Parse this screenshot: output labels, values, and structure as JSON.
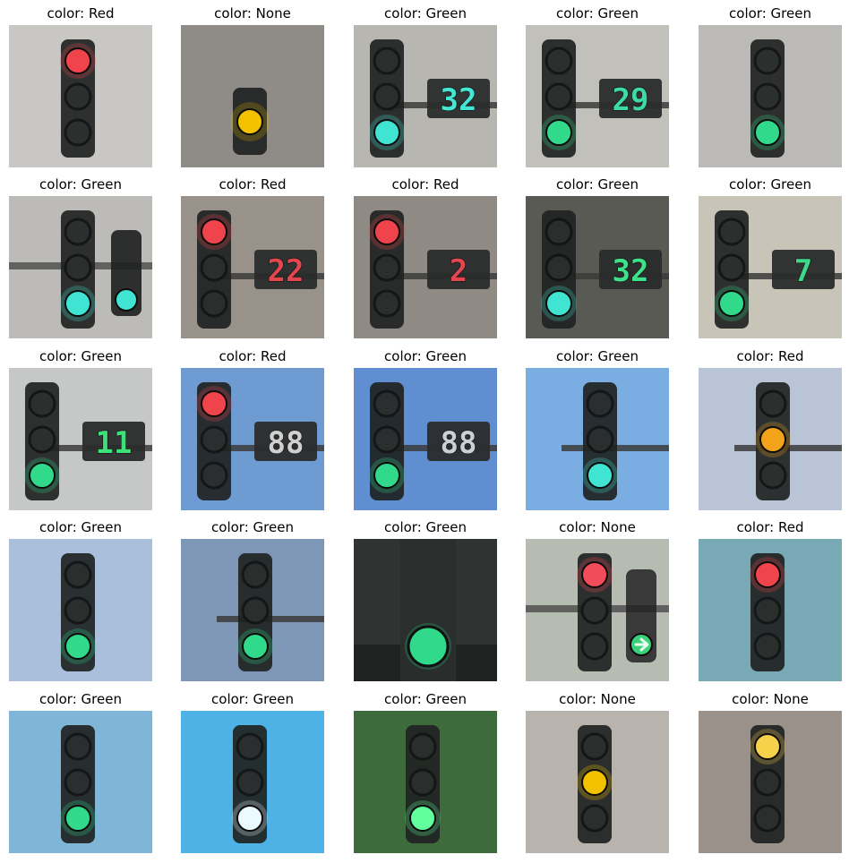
{
  "grid": [
    {
      "label": "color: Red",
      "signal": "red",
      "sky": "#c9c7c4",
      "numeric": "",
      "num_color": "",
      "scene": "single"
    },
    {
      "label": "color: None",
      "signal": "yellow",
      "sky": "#9a9690",
      "numeric": "",
      "num_color": "",
      "scene": "dark-single"
    },
    {
      "label": "color: Green",
      "signal": "cyan",
      "sky": "#b8b6b1",
      "numeric": "32",
      "num_color": "#44e6d4",
      "scene": "with-counter"
    },
    {
      "label": "color: Green",
      "signal": "green",
      "sky": "#c2c0bb",
      "numeric": "29",
      "num_color": "#3fd9a8",
      "scene": "with-counter"
    },
    {
      "label": "color: Green",
      "signal": "green",
      "sky": "#bcbab6",
      "numeric": "",
      "num_color": "",
      "scene": "single"
    },
    {
      "label": "color: Green",
      "signal": "cyan",
      "sky": "#bdbbb7",
      "numeric": "",
      "num_color": "",
      "scene": "pair"
    },
    {
      "label": "color: Red",
      "signal": "red",
      "sky": "#98928a",
      "numeric": "22",
      "num_color": "#e0474f",
      "scene": "with-counter"
    },
    {
      "label": "color: Red",
      "signal": "red",
      "sky": "#8f8a83",
      "numeric": "2",
      "num_color": "#e0474f",
      "scene": "with-counter"
    },
    {
      "label": "color: Green",
      "signal": "cyan",
      "sky": "#5a5a55",
      "numeric": "32",
      "num_color": "#3ee08a",
      "scene": "with-counter"
    },
    {
      "label": "color: Green",
      "signal": "green",
      "sky": "#c8c4b8",
      "numeric": "7",
      "num_color": "#3ed88a",
      "scene": "with-counter"
    },
    {
      "label": "color: Green",
      "signal": "green",
      "sky": "#c6c8c8",
      "numeric": "11",
      "num_color": "#3ee07a",
      "scene": "with-counter"
    },
    {
      "label": "color: Red",
      "signal": "red",
      "sky": "#6e9bd1",
      "numeric": "88",
      "num_color": "#d0d0d0",
      "scene": "with-counter"
    },
    {
      "label": "color: Green",
      "signal": "green",
      "sky": "#5f8fd0",
      "numeric": "88",
      "num_color": "#c8d0d8",
      "scene": "with-counter"
    },
    {
      "label": "color: Green",
      "signal": "cyan",
      "sky": "#7aaee3",
      "numeric": "",
      "num_color": "",
      "scene": "pole-right"
    },
    {
      "label": "color: Red",
      "signal": "amber",
      "sky": "#b9c4d6",
      "numeric": "",
      "num_color": "",
      "scene": "pole-right"
    },
    {
      "label": "color: Green",
      "signal": "green",
      "sky": "#a9bfdc",
      "numeric": "",
      "num_color": "",
      "scene": "single"
    },
    {
      "label": "color: Green",
      "signal": "green",
      "sky": "#7f97b6",
      "numeric": "",
      "num_color": "",
      "scene": "pole-right"
    },
    {
      "label": "color: Green",
      "signal": "green",
      "sky": "#3e4342",
      "numeric": "",
      "num_color": "",
      "scene": "close-dark"
    },
    {
      "label": "color: None",
      "signal": "red-arrow",
      "sky": "#b7bcb3",
      "numeric": "",
      "num_color": "",
      "scene": "pair"
    },
    {
      "label": "color: Red",
      "signal": "red",
      "sky": "#7aa9b6",
      "numeric": "",
      "num_color": "",
      "scene": "single"
    },
    {
      "label": "color: Green",
      "signal": "green",
      "sky": "#7fb5d6",
      "numeric": "",
      "num_color": "",
      "scene": "single"
    },
    {
      "label": "color: Green",
      "signal": "white",
      "sky": "#4fb2e6",
      "numeric": "",
      "num_color": "",
      "scene": "single"
    },
    {
      "label": "color: Green",
      "signal": "bright-green",
      "sky": "#3e6b3c",
      "numeric": "",
      "num_color": "",
      "scene": "single"
    },
    {
      "label": "color: None",
      "signal": "yellow",
      "sky": "#b9b3ad",
      "numeric": "",
      "num_color": "",
      "scene": "single"
    },
    {
      "label": "color: None",
      "signal": "yellow-red",
      "sky": "#9a928a",
      "numeric": "",
      "num_color": "",
      "scene": "single"
    }
  ]
}
